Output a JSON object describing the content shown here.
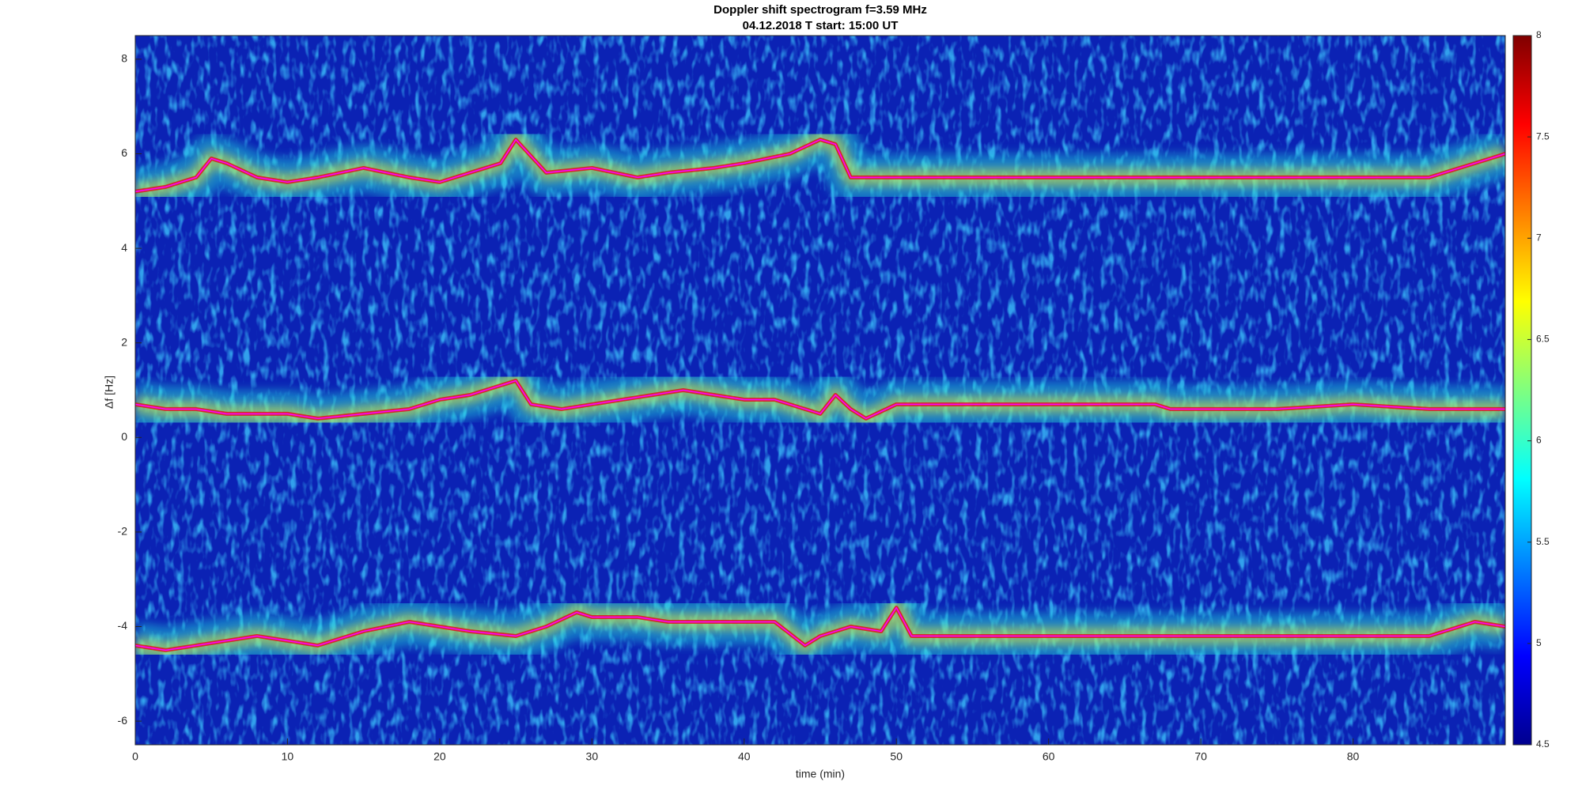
{
  "chart_data": {
    "type": "spectrogram",
    "title": "Doppler shift spectrogram f=3.59 MHz",
    "subtitle": "04.12.2018   T start: 15:00 UT",
    "x_label": "time (min)",
    "y_label": "Δf [Hz]",
    "xlim": [
      0,
      90
    ],
    "xticks": [
      0,
      10,
      20,
      30,
      40,
      50,
      60,
      70,
      80
    ],
    "ylim": [
      -6.5,
      8.5
    ],
    "yticks": [
      -6,
      -4,
      -2,
      0,
      2,
      4,
      6,
      8
    ],
    "clim": [
      4.5,
      8
    ],
    "cticks": [
      4.5,
      5,
      5.5,
      6,
      6.5,
      7,
      7.5,
      8
    ],
    "series": [
      {
        "color": "#ff00ff",
        "x": [
          0,
          2,
          4,
          5,
          6,
          8,
          10,
          12,
          15,
          18,
          20,
          22,
          24,
          25,
          27,
          30,
          33,
          35,
          38,
          40,
          43,
          45,
          46,
          47,
          50,
          60,
          70,
          80,
          85,
          86,
          88,
          90
        ],
        "values": [
          5.2,
          5.3,
          5.5,
          5.9,
          5.8,
          5.5,
          5.4,
          5.5,
          5.7,
          5.5,
          5.4,
          5.6,
          5.8,
          6.3,
          5.6,
          5.7,
          5.5,
          5.6,
          5.7,
          5.8,
          6.0,
          6.3,
          6.2,
          5.5,
          5.5,
          5.5,
          5.5,
          5.5,
          5.5,
          5.6,
          5.8,
          6.0
        ]
      },
      {
        "color": "#ff00ff",
        "x": [
          0,
          2,
          4,
          6,
          8,
          10,
          12,
          15,
          18,
          20,
          22,
          24,
          25,
          26,
          28,
          30,
          32,
          34,
          36,
          38,
          40,
          42,
          44,
          45,
          46,
          47,
          48,
          50,
          55,
          60,
          65,
          67,
          68,
          70,
          75,
          80,
          85,
          90
        ],
        "values": [
          0.7,
          0.6,
          0.6,
          0.5,
          0.5,
          0.5,
          0.4,
          0.5,
          0.6,
          0.8,
          0.9,
          1.1,
          1.2,
          0.7,
          0.6,
          0.7,
          0.8,
          0.9,
          1.0,
          0.9,
          0.8,
          0.8,
          0.6,
          0.5,
          0.9,
          0.6,
          0.4,
          0.7,
          0.7,
          0.7,
          0.7,
          0.7,
          0.6,
          0.6,
          0.6,
          0.7,
          0.6,
          0.6
        ]
      },
      {
        "color": "#ff00ff",
        "x": [
          0,
          2,
          4,
          6,
          8,
          10,
          12,
          15,
          18,
          20,
          22,
          25,
          27,
          29,
          30,
          33,
          35,
          38,
          40,
          42,
          44,
          45,
          47,
          49,
          50,
          51,
          55,
          60,
          70,
          80,
          85,
          86,
          88,
          90
        ],
        "values": [
          -4.4,
          -4.5,
          -4.4,
          -4.3,
          -4.2,
          -4.3,
          -4.4,
          -4.1,
          -3.9,
          -4.0,
          -4.1,
          -4.2,
          -4.0,
          -3.7,
          -3.8,
          -3.8,
          -3.9,
          -3.9,
          -3.9,
          -3.9,
          -4.4,
          -4.2,
          -4.0,
          -4.1,
          -3.6,
          -4.2,
          -4.2,
          -4.2,
          -4.2,
          -4.2,
          -4.2,
          -4.1,
          -3.9,
          -4.0
        ]
      }
    ]
  }
}
